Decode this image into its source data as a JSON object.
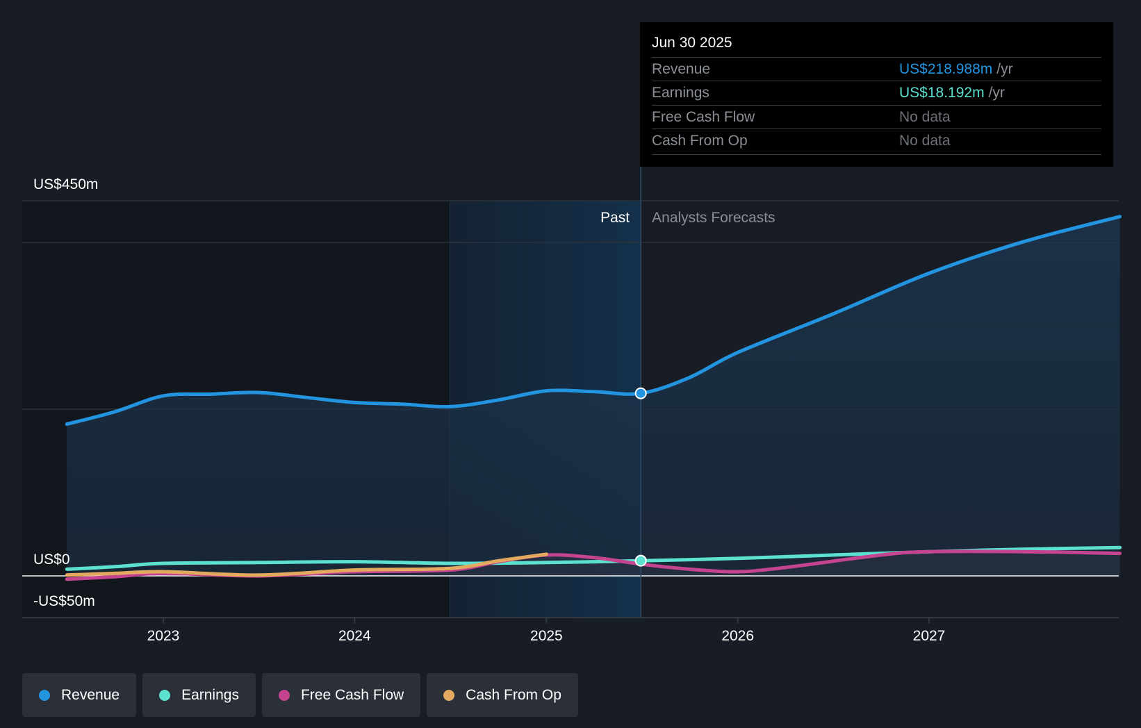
{
  "chart_data": {
    "type": "line",
    "x_axis": {
      "ticks": [
        "2023",
        "2024",
        "2025",
        "2026",
        "2027"
      ]
    },
    "y_axis": {
      "labels": [
        "US$450m",
        "US$0",
        "-US$50m"
      ],
      "ylim": [
        -50,
        450
      ]
    },
    "regions": {
      "past_label": "Past",
      "forecast_label": "Analysts Forecasts"
    },
    "series": [
      {
        "name": "Revenue",
        "color": "#2394df",
        "points": [
          [
            "2022-07-01",
            182
          ],
          [
            "2022-10-01",
            197
          ],
          [
            "2023-01-01",
            216
          ],
          [
            "2023-04-01",
            218
          ],
          [
            "2023-07-01",
            220
          ],
          [
            "2023-10-01",
            214
          ],
          [
            "2024-01-01",
            208
          ],
          [
            "2024-04-01",
            206
          ],
          [
            "2024-07-01",
            203
          ],
          [
            "2024-10-01",
            211
          ],
          [
            "2025-01-01",
            222
          ],
          [
            "2025-04-01",
            221
          ],
          [
            "2025-06-30",
            219
          ],
          [
            "2025-10-01",
            238
          ],
          [
            "2026-01-01",
            268
          ],
          [
            "2026-07-01",
            314
          ],
          [
            "2027-01-01",
            363
          ],
          [
            "2027-07-01",
            401
          ],
          [
            "2027-12-31",
            431
          ]
        ]
      },
      {
        "name": "Earnings",
        "color": "#5ce0cf",
        "points": [
          [
            "2022-07-01",
            8
          ],
          [
            "2022-10-01",
            11
          ],
          [
            "2023-01-01",
            15
          ],
          [
            "2023-07-01",
            16
          ],
          [
            "2024-01-01",
            17
          ],
          [
            "2024-07-01",
            15
          ],
          [
            "2025-01-01",
            16
          ],
          [
            "2025-06-30",
            18.192
          ],
          [
            "2026-01-01",
            21
          ],
          [
            "2026-07-01",
            25
          ],
          [
            "2027-01-01",
            29
          ],
          [
            "2027-07-01",
            32
          ],
          [
            "2027-12-31",
            34
          ]
        ]
      },
      {
        "name": "Free Cash Flow",
        "color": "#c5448f",
        "points": [
          [
            "2022-07-01",
            -4
          ],
          [
            "2022-10-01",
            -1
          ],
          [
            "2023-01-01",
            3
          ],
          [
            "2023-07-01",
            0
          ],
          [
            "2024-01-01",
            5
          ],
          [
            "2024-07-01",
            7
          ],
          [
            "2024-10-01",
            17
          ],
          [
            "2025-01-01",
            25
          ],
          [
            "2025-04-01",
            22
          ],
          [
            "2025-07-01",
            14
          ],
          [
            "2025-10-01",
            8
          ],
          [
            "2026-01-01",
            5
          ],
          [
            "2026-04-01",
            10
          ],
          [
            "2026-10-01",
            25
          ],
          [
            "2027-01-01",
            29
          ],
          [
            "2027-07-01",
            29
          ],
          [
            "2027-12-31",
            27
          ]
        ]
      },
      {
        "name": "Cash From Op",
        "color": "#e3aa5f",
        "points": [
          [
            "2022-07-01",
            1
          ],
          [
            "2022-10-01",
            3
          ],
          [
            "2023-01-01",
            5
          ],
          [
            "2023-07-01",
            1
          ],
          [
            "2024-01-01",
            7
          ],
          [
            "2024-07-01",
            9
          ],
          [
            "2024-10-01",
            18
          ],
          [
            "2025-01-01",
            26
          ]
        ]
      }
    ],
    "tooltip_date": "Jun 30 2025",
    "tooltip": [
      {
        "label": "Revenue",
        "value": "US$218.988m",
        "unit": "/yr",
        "color": "#2394df"
      },
      {
        "label": "Earnings",
        "value": "US$18.192m",
        "unit": "/yr",
        "color": "#5ce0cf"
      },
      {
        "label": "Free Cash Flow",
        "value": "No data",
        "unit": "",
        "color": "#6d7178"
      },
      {
        "label": "Cash From Op",
        "value": "No data",
        "unit": "",
        "color": "#6d7178"
      }
    ],
    "legend": [
      {
        "name": "Revenue",
        "color": "#2394df"
      },
      {
        "name": "Earnings",
        "color": "#5ce0cf"
      },
      {
        "name": "Free Cash Flow",
        "color": "#c5448f"
      },
      {
        "name": "Cash From Op",
        "color": "#e3aa5f"
      }
    ]
  }
}
